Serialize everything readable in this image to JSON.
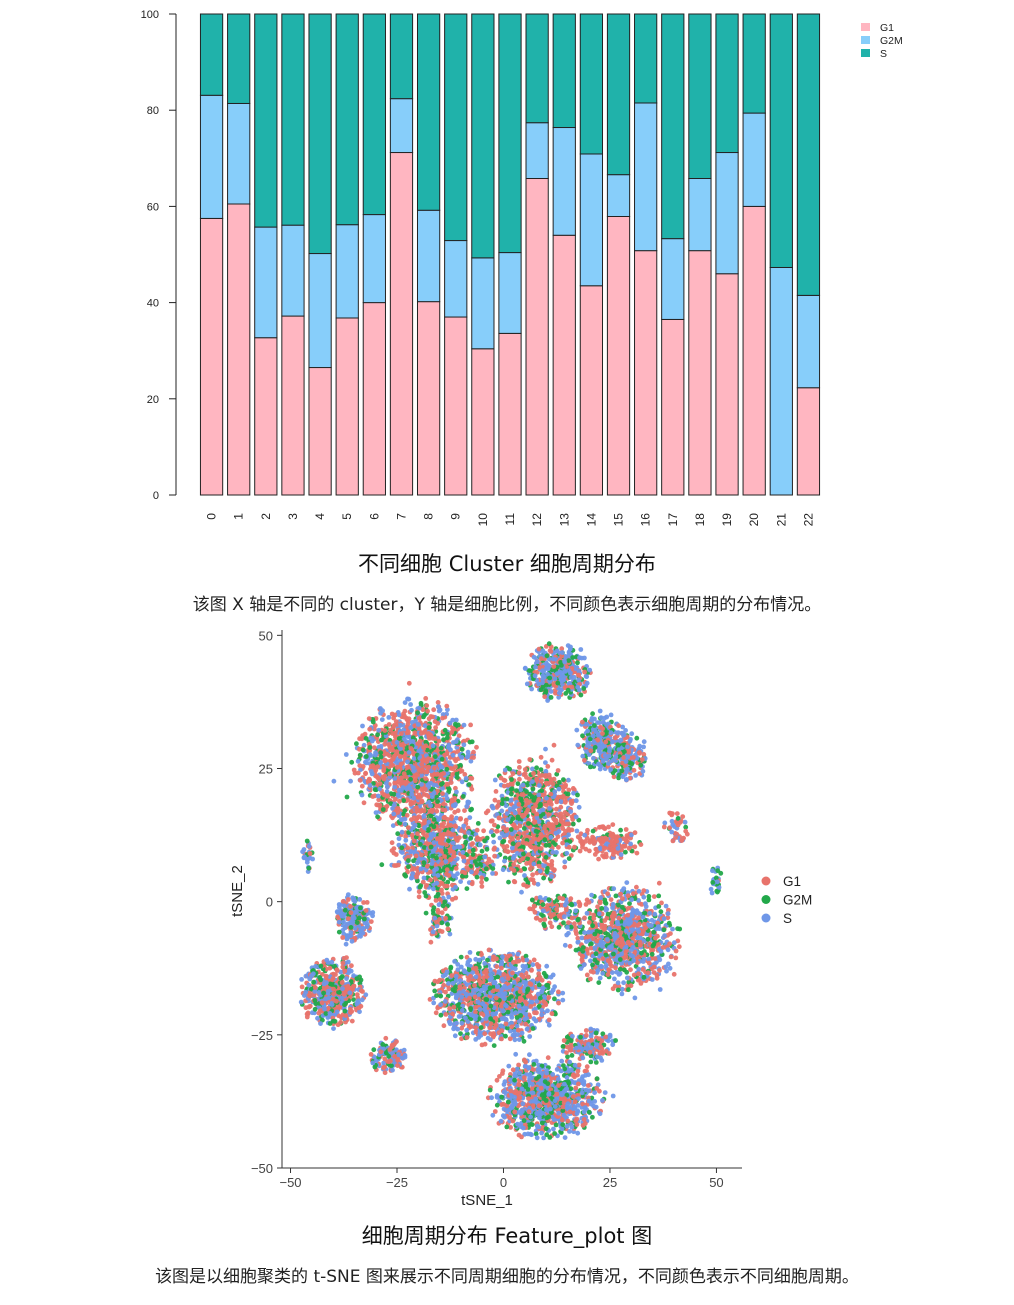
{
  "chart_data": [
    {
      "type": "bar",
      "stacked": true,
      "percent": true,
      "categories": [
        "0",
        "1",
        "2",
        "3",
        "4",
        "5",
        "6",
        "7",
        "8",
        "9",
        "10",
        "11",
        "12",
        "13",
        "14",
        "15",
        "16",
        "17",
        "18",
        "19",
        "20",
        "21",
        "22"
      ],
      "series": [
        {
          "name": "G1",
          "color": "#ffb6c1",
          "values": [
            57.5,
            60.5,
            32.7,
            37.2,
            26.5,
            36.8,
            40.0,
            71.2,
            40.2,
            37.0,
            30.4,
            33.6,
            65.8,
            54.0,
            43.5,
            57.9,
            50.8,
            36.5,
            50.8,
            46.0,
            60.0,
            0.0,
            22.3
          ]
        },
        {
          "name": "G2M",
          "color": "#87cefa",
          "values": [
            25.6,
            20.9,
            23.0,
            18.9,
            23.7,
            19.4,
            18.3,
            11.2,
            19.0,
            15.9,
            18.9,
            16.8,
            11.6,
            22.4,
            27.4,
            8.7,
            30.7,
            16.8,
            15.0,
            25.2,
            19.4,
            47.3,
            19.2
          ]
        },
        {
          "name": "S",
          "color": "#20b2aa",
          "values": [
            16.9,
            18.6,
            44.3,
            43.9,
            49.8,
            43.8,
            41.7,
            17.6,
            40.8,
            47.1,
            50.7,
            49.6,
            22.6,
            23.6,
            29.1,
            33.4,
            18.5,
            46.7,
            34.2,
            28.8,
            20.6,
            52.7,
            58.5
          ]
        }
      ],
      "ylim": [
        0,
        100
      ],
      "yticks": [
        0,
        20,
        40,
        60,
        80,
        100
      ],
      "legend_position": "top-right",
      "xlabel": "",
      "ylabel": ""
    },
    {
      "type": "scatter",
      "xlabel": "tSNE_1",
      "ylabel": "tSNE_2",
      "xlim": [
        -52,
        56
      ],
      "ylim": [
        -50,
        51
      ],
      "xticks": [
        -50,
        -25,
        0,
        25,
        50
      ],
      "yticks": [
        -50,
        -25,
        0,
        25,
        50
      ],
      "groups": [
        {
          "name": "G1",
          "color": "#e8736b"
        },
        {
          "name": "G2M",
          "color": "#22a84a"
        },
        {
          "name": "S",
          "color": "#6f97e8"
        }
      ],
      "legend_position": "right",
      "clusters": [
        {
          "cx": -21,
          "cy": 26,
          "rx": 13,
          "ry": 11,
          "n": 1300,
          "mix": [
            0.55,
            0.2,
            0.25
          ]
        },
        {
          "cx": -15,
          "cy": 10,
          "rx": 10,
          "ry": 9,
          "n": 700,
          "mix": [
            0.5,
            0.2,
            0.3
          ]
        },
        {
          "cx": 7,
          "cy": 15,
          "rx": 10,
          "ry": 11,
          "n": 900,
          "mix": [
            0.55,
            0.22,
            0.23
          ]
        },
        {
          "cx": 13,
          "cy": 43,
          "rx": 7,
          "ry": 5,
          "n": 400,
          "mix": [
            0.25,
            0.2,
            0.55
          ]
        },
        {
          "cx": 23,
          "cy": 30,
          "rx": 6,
          "ry": 5,
          "n": 250,
          "mix": [
            0.25,
            0.2,
            0.55
          ]
        },
        {
          "cx": 29,
          "cy": 27,
          "rx": 5,
          "ry": 4,
          "n": 150,
          "mix": [
            0.3,
            0.2,
            0.5
          ]
        },
        {
          "cx": 25,
          "cy": 11,
          "rx": 7,
          "ry": 3,
          "n": 150,
          "mix": [
            0.75,
            0.1,
            0.15
          ]
        },
        {
          "cx": 41,
          "cy": 14,
          "rx": 3,
          "ry": 3,
          "n": 40,
          "mix": [
            0.5,
            0.1,
            0.4
          ]
        },
        {
          "cx": -46,
          "cy": 9,
          "rx": 1.5,
          "ry": 3,
          "n": 30,
          "mix": [
            0.3,
            0.2,
            0.5
          ]
        },
        {
          "cx": 50,
          "cy": 4,
          "rx": 1.5,
          "ry": 3,
          "n": 25,
          "mix": [
            0.1,
            0.4,
            0.5
          ]
        },
        {
          "cx": -35,
          "cy": -3,
          "rx": 4,
          "ry": 4,
          "n": 200,
          "mix": [
            0.25,
            0.2,
            0.55
          ]
        },
        {
          "cx": -40,
          "cy": -17,
          "rx": 7,
          "ry": 6,
          "n": 500,
          "mix": [
            0.5,
            0.2,
            0.3
          ]
        },
        {
          "cx": -27,
          "cy": -29,
          "rx": 4,
          "ry": 3,
          "n": 120,
          "mix": [
            0.4,
            0.2,
            0.4
          ]
        },
        {
          "cx": -2,
          "cy": -18,
          "rx": 14,
          "ry": 8,
          "n": 1100,
          "mix": [
            0.35,
            0.2,
            0.45
          ]
        },
        {
          "cx": 28,
          "cy": -7,
          "rx": 12,
          "ry": 9,
          "n": 900,
          "mix": [
            0.4,
            0.2,
            0.4
          ]
        },
        {
          "cx": 10,
          "cy": -37,
          "rx": 12,
          "ry": 7,
          "n": 900,
          "mix": [
            0.3,
            0.2,
            0.5
          ]
        },
        {
          "cx": 12,
          "cy": -2,
          "rx": 6,
          "ry": 3,
          "n": 120,
          "mix": [
            0.4,
            0.3,
            0.3
          ]
        },
        {
          "cx": 20,
          "cy": -27,
          "rx": 6,
          "ry": 3,
          "n": 150,
          "mix": [
            0.3,
            0.25,
            0.45
          ]
        },
        {
          "cx": -15,
          "cy": -3,
          "rx": 3,
          "ry": 4,
          "n": 60,
          "mix": [
            0.4,
            0.3,
            0.3
          ]
        },
        {
          "cx": -5,
          "cy": 7,
          "rx": 3,
          "ry": 4,
          "n": 60,
          "mix": [
            0.4,
            0.3,
            0.3
          ]
        }
      ]
    }
  ],
  "captions": {
    "bar_title": "不同细胞 Cluster 细胞周期分布",
    "bar_desc": "该图 X 轴是不同的 cluster，Y 轴是细胞比例，不同颜色表示细胞周期的分布情况。",
    "tsne_title": "细胞周期分布 Feature_plot 图",
    "tsne_desc": "该图是以细胞聚类的 t-SNE 图来展示不同周期细胞的分布情况，不同颜色表示不同细胞周期。"
  }
}
